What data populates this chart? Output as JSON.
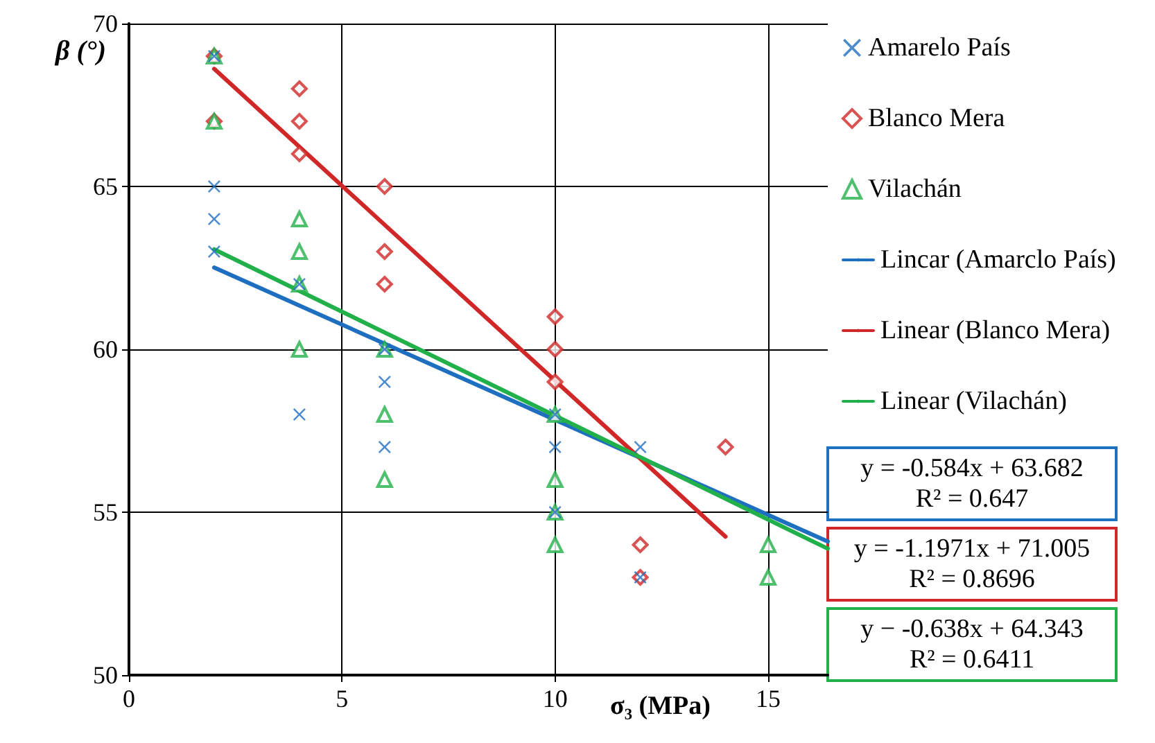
{
  "chart_data": {
    "type": "scatter",
    "ylabel": "β (°)",
    "xlabel": "σ₃ (MPa)",
    "xlim": [
      0,
      16.4
    ],
    "xticks": [
      0,
      5,
      10,
      15
    ],
    "ylim": [
      50,
      70
    ],
    "yticks": [
      50,
      55,
      60,
      65,
      70
    ],
    "grid": true,
    "legend": "right",
    "series": [
      {
        "name": "Amarelo País",
        "color": "#1f6fc0",
        "marker": "cross",
        "x": [
          2,
          2,
          2,
          2,
          4,
          4,
          6,
          6,
          6,
          10,
          10,
          10,
          12,
          12
        ],
        "values": [
          69,
          65,
          64,
          63,
          62,
          58,
          60,
          59,
          57,
          58,
          57,
          55,
          57,
          53
        ]
      },
      {
        "name": "Blanco Mera",
        "color": "#d02828",
        "marker": "diamond",
        "x": [
          2,
          2,
          4,
          4,
          4,
          6,
          6,
          6,
          10,
          10,
          10,
          12,
          12,
          14
        ],
        "values": [
          69,
          67,
          68,
          67,
          66,
          65,
          63,
          62,
          61,
          60,
          59,
          54,
          53,
          57
        ]
      },
      {
        "name": "Vilachán",
        "color": "#22b04a",
        "marker": "triangle",
        "x": [
          2,
          2,
          4,
          4,
          4,
          4,
          6,
          6,
          6,
          10,
          10,
          10,
          10,
          15,
          15
        ],
        "values": [
          69,
          67,
          64,
          63,
          62,
          60,
          60,
          58,
          56,
          58,
          56,
          55,
          54,
          54,
          53
        ]
      },
      {
        "name": "Lincar (Amarclo País)",
        "type": "line",
        "color": "#1f6fc0",
        "marker": "none",
        "x": [
          2,
          16.4
        ],
        "values": [
          62.51,
          54.1
        ]
      },
      {
        "name": "Linear (Blanco Mera)",
        "type": "line",
        "color": "#d02828",
        "marker": "none",
        "x": [
          2,
          14
        ],
        "values": [
          68.61,
          54.25
        ]
      },
      {
        "name": "Linear (Vilachán)",
        "type": "line",
        "color": "#22b04a",
        "marker": "none",
        "x": [
          2,
          16.4
        ],
        "values": [
          63.07,
          53.88
        ]
      }
    ],
    "annotations": [
      "y = -0.584x + 63.682\nR² = 0.647",
      "y = -1.1971x + 71.005\nR² = 0.8696",
      "y − -0.638x + 64.343\nR² = 0.6411"
    ]
  }
}
